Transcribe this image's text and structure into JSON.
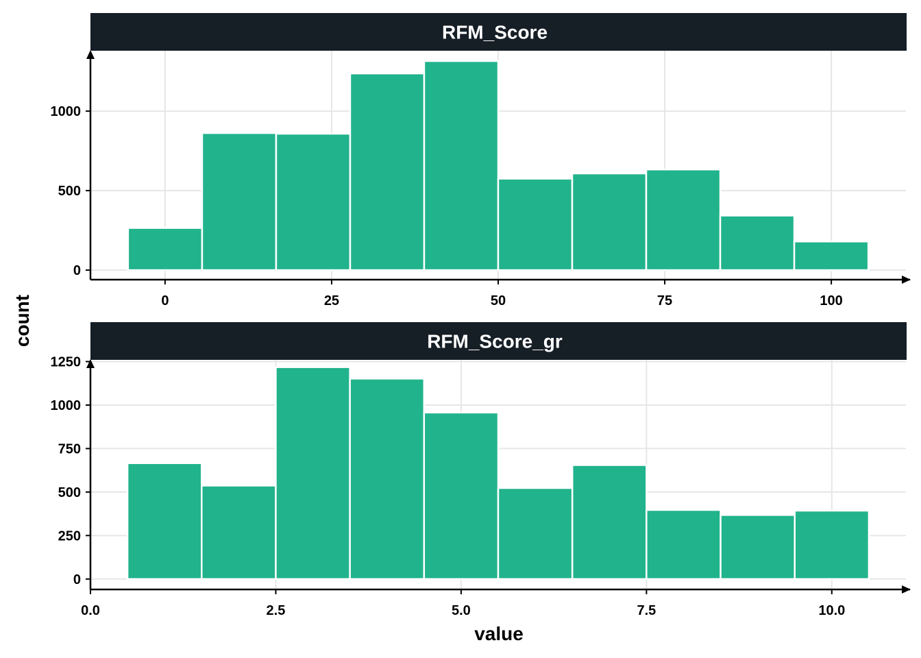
{
  "chart_data": {
    "type": "bar",
    "xlabel": "value",
    "ylabel": "count",
    "colors": {
      "bar": "#21B38C",
      "bar_edge": "#ffffff",
      "strip": "#161E26",
      "grid": "#E6E6E6",
      "axis": "#000000"
    },
    "grid": true,
    "panels": [
      {
        "title": "RFM_Score",
        "xlim": [
          -11.2,
          111.2
        ],
        "ylim": [
          -60,
          1380
        ],
        "xticks": [
          0,
          25,
          50,
          75,
          100
        ],
        "xtick_labels": [
          "0",
          "25",
          "50",
          "75",
          "100"
        ],
        "yticks": [
          0,
          500,
          1000
        ],
        "ytick_labels": [
          "0",
          "500",
          "1000"
        ],
        "bins": [
          {
            "x0": -5.56,
            "x1": 5.56,
            "count": 265
          },
          {
            "x0": 5.56,
            "x1": 16.67,
            "count": 862
          },
          {
            "x0": 16.67,
            "x1": 27.78,
            "count": 858
          },
          {
            "x0": 27.78,
            "x1": 38.89,
            "count": 1237
          },
          {
            "x0": 38.89,
            "x1": 50.0,
            "count": 1315
          },
          {
            "x0": 50.0,
            "x1": 61.11,
            "count": 575
          },
          {
            "x0": 61.11,
            "x1": 72.22,
            "count": 608
          },
          {
            "x0": 72.22,
            "x1": 83.33,
            "count": 633
          },
          {
            "x0": 83.33,
            "x1": 94.44,
            "count": 343
          },
          {
            "x0": 94.44,
            "x1": 105.56,
            "count": 180
          }
        ]
      },
      {
        "title": "RFM_Score_gr",
        "xlim": [
          0.0,
          11.0
        ],
        "ylim": [
          -60,
          1260
        ],
        "xticks": [
          0,
          2.5,
          5,
          7.5,
          10
        ],
        "xtick_labels": [
          "0.0",
          "2.5",
          "5.0",
          "7.5",
          "10.0"
        ],
        "yticks": [
          0,
          250,
          500,
          750,
          1000,
          1250
        ],
        "ytick_labels": [
          "0",
          "250",
          "500",
          "750",
          "1000",
          "1250"
        ],
        "bins": [
          {
            "x0": 0.5,
            "x1": 1.5,
            "count": 666
          },
          {
            "x0": 1.5,
            "x1": 2.5,
            "count": 537
          },
          {
            "x0": 2.5,
            "x1": 3.5,
            "count": 1218
          },
          {
            "x0": 3.5,
            "x1": 4.5,
            "count": 1152
          },
          {
            "x0": 4.5,
            "x1": 5.5,
            "count": 957
          },
          {
            "x0": 5.5,
            "x1": 6.5,
            "count": 523
          },
          {
            "x0": 6.5,
            "x1": 7.5,
            "count": 655
          },
          {
            "x0": 7.5,
            "x1": 8.5,
            "count": 397
          },
          {
            "x0": 8.5,
            "x1": 9.5,
            "count": 368
          },
          {
            "x0": 9.5,
            "x1": 10.5,
            "count": 393
          }
        ]
      }
    ]
  }
}
